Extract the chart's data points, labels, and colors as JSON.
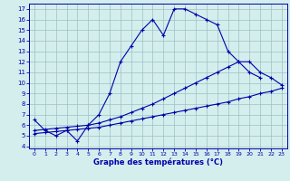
{
  "xlabel": "Graphe des températures (°C)",
  "bg_color": "#d4eeee",
  "grid_color": "#9ec0c0",
  "line_color": "#0000aa",
  "ylim": [
    3.8,
    17.5
  ],
  "xlim": [
    -0.5,
    23.5
  ],
  "main_curve_x": [
    0,
    1,
    2,
    3,
    4,
    5,
    6,
    7,
    8,
    9,
    10,
    11,
    12,
    13,
    14,
    15,
    16,
    17,
    18,
    19,
    20,
    21
  ],
  "main_curve_y": [
    6.5,
    5.5,
    5.0,
    5.5,
    4.5,
    6.0,
    7.0,
    9.0,
    12.0,
    13.5,
    15.0,
    16.0,
    14.5,
    17.0,
    17.0,
    16.5,
    16.0,
    15.5,
    13.0,
    12.0,
    11.0,
    10.5
  ],
  "trend_low_x": [
    0,
    1,
    2,
    3,
    4,
    5,
    6,
    7,
    8,
    9,
    10,
    11,
    12,
    13,
    14,
    15,
    16,
    17,
    18,
    19,
    20,
    21,
    22,
    23
  ],
  "trend_low_y": [
    5.2,
    5.3,
    5.4,
    5.5,
    5.6,
    5.7,
    5.8,
    6.0,
    6.2,
    6.4,
    6.6,
    6.8,
    7.0,
    7.2,
    7.4,
    7.6,
    7.8,
    8.0,
    8.2,
    8.5,
    8.7,
    9.0,
    9.2,
    9.5
  ],
  "trend_mid_x": [
    0,
    1,
    2,
    3,
    4,
    5,
    6,
    7,
    8,
    9,
    10,
    11,
    12,
    13,
    14,
    15,
    16,
    17,
    18,
    19,
    20,
    21,
    22,
    23
  ],
  "trend_mid_y": [
    5.5,
    5.6,
    5.7,
    5.8,
    5.9,
    6.0,
    6.2,
    6.5,
    6.8,
    7.2,
    7.6,
    8.0,
    8.5,
    9.0,
    9.5,
    10.0,
    10.5,
    11.0,
    11.5,
    12.0,
    12.0,
    11.0,
    10.5,
    9.8
  ],
  "x_ticks": [
    0,
    1,
    2,
    3,
    4,
    5,
    6,
    7,
    8,
    9,
    10,
    11,
    12,
    13,
    14,
    15,
    16,
    17,
    18,
    19,
    20,
    21,
    22,
    23
  ],
  "y_ticks": [
    4,
    5,
    6,
    7,
    8,
    9,
    10,
    11,
    12,
    13,
    14,
    15,
    16,
    17
  ]
}
